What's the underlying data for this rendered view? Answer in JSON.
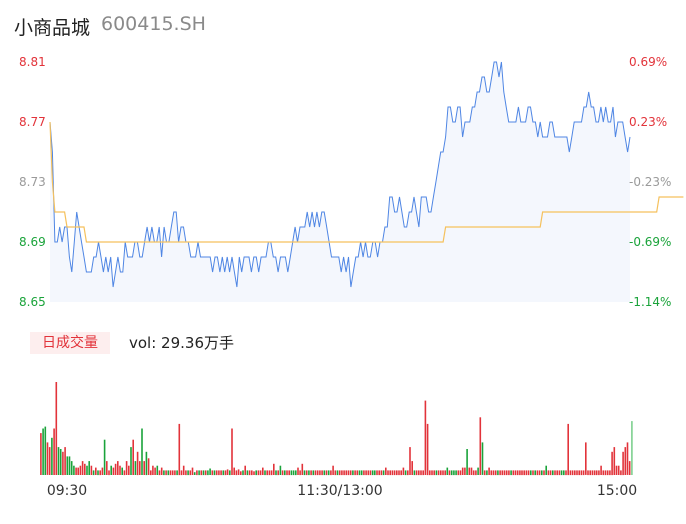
{
  "header": {
    "name": "小商品城",
    "code": "600415.SH"
  },
  "volume_panel": {
    "tag": "日成交量",
    "text": "vol: 29.36万手"
  },
  "colors": {
    "price_line": "#4f86e4",
    "avg_line": "#f5c15d",
    "area_fill": "#f4f7fd",
    "up": "#e2333a",
    "down": "#1aa33a",
    "neutral": "#9a9a9a"
  },
  "chart_data": [
    {
      "type": "line",
      "ylim": [
        8.65,
        8.81
      ],
      "y_ticks": [
        {
          "label": "8.81",
          "tone": "up"
        },
        {
          "label": "8.77",
          "tone": "up"
        },
        {
          "label": "8.73",
          "tone": "neutral"
        },
        {
          "label": "8.69",
          "tone": "down"
        },
        {
          "label": "8.65",
          "tone": "down"
        }
      ],
      "y2_ticks": [
        {
          "label": "0.69%",
          "tone": "up"
        },
        {
          "label": "0.23%",
          "tone": "up"
        },
        {
          "label": "-0.23%",
          "tone": "neutral"
        },
        {
          "label": "-0.69%",
          "tone": "down"
        },
        {
          "label": "-1.14%",
          "tone": "down"
        }
      ],
      "grid": false,
      "series": [
        {
          "role": "price",
          "values": [
            8.77,
            8.75,
            8.69,
            8.69,
            8.7,
            8.69,
            8.7,
            8.7,
            8.68,
            8.67,
            8.69,
            8.71,
            8.7,
            8.69,
            8.68,
            8.67,
            8.67,
            8.67,
            8.68,
            8.68,
            8.69,
            8.68,
            8.67,
            8.68,
            8.67,
            8.68,
            8.66,
            8.67,
            8.68,
            8.67,
            8.67,
            8.69,
            8.68,
            8.68,
            8.68,
            8.69,
            8.69,
            8.68,
            8.68,
            8.69,
            8.7,
            8.69,
            8.7,
            8.69,
            8.69,
            8.7,
            8.68,
            8.7,
            8.69,
            8.69,
            8.7,
            8.71,
            8.71,
            8.69,
            8.7,
            8.7,
            8.69,
            8.69,
            8.68,
            8.68,
            8.68,
            8.69,
            8.68,
            8.68,
            8.68,
            8.68,
            8.68,
            8.67,
            8.68,
            8.68,
            8.67,
            8.68,
            8.67,
            8.68,
            8.67,
            8.68,
            8.67,
            8.66,
            8.68,
            8.67,
            8.68,
            8.68,
            8.68,
            8.67,
            8.68,
            8.68,
            8.67,
            8.68,
            8.68,
            8.68,
            8.69,
            8.69,
            8.68,
            8.68,
            8.67,
            8.68,
            8.68,
            8.68,
            8.67,
            8.68,
            8.69,
            8.7,
            8.69,
            8.7,
            8.7,
            8.7,
            8.71,
            8.7,
            8.71,
            8.7,
            8.71,
            8.7,
            8.71,
            8.71,
            8.7,
            8.69,
            8.68,
            8.68,
            8.68,
            8.68,
            8.67,
            8.68,
            8.67,
            8.68,
            8.66,
            8.67,
            8.68,
            8.68,
            8.69,
            8.68,
            8.69,
            8.68,
            8.68,
            8.69,
            8.69,
            8.68,
            8.69,
            8.69,
            8.7,
            8.7,
            8.72,
            8.72,
            8.71,
            8.71,
            8.72,
            8.71,
            8.7,
            8.7,
            8.71,
            8.71,
            8.72,
            8.71,
            8.7,
            8.72,
            8.72,
            8.72,
            8.71,
            8.71,
            8.72,
            8.73,
            8.74,
            8.75,
            8.75,
            8.76,
            8.78,
            8.78,
            8.77,
            8.77,
            8.78,
            8.78,
            8.76,
            8.77,
            8.77,
            8.77,
            8.78,
            8.78,
            8.79,
            8.79,
            8.8,
            8.8,
            8.79,
            8.79,
            8.8,
            8.81,
            8.81,
            8.8,
            8.81,
            8.79,
            8.78,
            8.77,
            8.77,
            8.77,
            8.77,
            8.78,
            8.77,
            8.77,
            8.77,
            8.78,
            8.78,
            8.77,
            8.77,
            8.76,
            8.77,
            8.76,
            8.76,
            8.76,
            8.77,
            8.77,
            8.76,
            8.76,
            8.76,
            8.76,
            8.76,
            8.76,
            8.75,
            8.76,
            8.77,
            8.77,
            8.77,
            8.77,
            8.78,
            8.78,
            8.79,
            8.78,
            8.78,
            8.77,
            8.77,
            8.78,
            8.77,
            8.78,
            8.77,
            8.77,
            8.78,
            8.76,
            8.77,
            8.77,
            8.77,
            8.76,
            8.75,
            8.76
          ]
        },
        {
          "role": "average",
          "values": [
            8.77,
            8.73,
            8.71,
            8.71,
            8.71,
            8.71,
            8.71,
            8.7,
            8.7,
            8.7,
            8.7,
            8.7,
            8.7,
            8.7,
            8.7,
            8.69,
            8.69,
            8.69,
            8.69,
            8.69,
            8.69,
            8.69,
            8.69,
            8.69,
            8.69,
            8.69,
            8.69,
            8.69,
            8.69,
            8.69,
            8.69,
            8.69,
            8.69,
            8.69,
            8.69,
            8.69,
            8.69,
            8.69,
            8.69,
            8.69,
            8.69,
            8.69,
            8.69,
            8.69,
            8.69,
            8.69,
            8.69,
            8.69,
            8.69,
            8.69,
            8.69,
            8.69,
            8.69,
            8.69,
            8.69,
            8.69,
            8.69,
            8.69,
            8.69,
            8.69,
            8.69,
            8.69,
            8.69,
            8.69,
            8.69,
            8.69,
            8.69,
            8.69,
            8.69,
            8.69,
            8.69,
            8.69,
            8.69,
            8.69,
            8.69,
            8.69,
            8.69,
            8.69,
            8.69,
            8.69,
            8.69,
            8.69,
            8.69,
            8.69,
            8.69,
            8.69,
            8.69,
            8.69,
            8.69,
            8.69,
            8.69,
            8.69,
            8.69,
            8.69,
            8.69,
            8.69,
            8.69,
            8.69,
            8.69,
            8.69,
            8.69,
            8.69,
            8.69,
            8.69,
            8.69,
            8.69,
            8.69,
            8.69,
            8.69,
            8.69,
            8.69,
            8.69,
            8.69,
            8.69,
            8.69,
            8.69,
            8.69,
            8.69,
            8.69,
            8.69,
            8.69,
            8.69,
            8.69,
            8.69,
            8.69,
            8.69,
            8.69,
            8.69,
            8.69,
            8.69,
            8.69,
            8.69,
            8.69,
            8.69,
            8.69,
            8.69,
            8.69,
            8.69,
            8.69,
            8.69,
            8.69,
            8.69,
            8.69,
            8.69,
            8.69,
            8.69,
            8.69,
            8.69,
            8.69,
            8.69,
            8.69,
            8.69,
            8.69,
            8.69,
            8.69,
            8.69,
            8.69,
            8.69,
            8.69,
            8.69,
            8.69,
            8.69,
            8.69,
            8.7,
            8.7,
            8.7,
            8.7,
            8.7,
            8.7,
            8.7,
            8.7,
            8.7,
            8.7,
            8.7,
            8.7,
            8.7,
            8.7,
            8.7,
            8.7,
            8.7,
            8.7,
            8.7,
            8.7,
            8.7,
            8.7,
            8.7,
            8.7,
            8.7,
            8.7,
            8.7,
            8.7,
            8.7,
            8.7,
            8.7,
            8.7,
            8.7,
            8.7,
            8.7,
            8.7,
            8.7,
            8.7,
            8.7,
            8.7,
            8.71,
            8.71,
            8.71,
            8.71,
            8.71,
            8.71,
            8.71,
            8.71,
            8.71,
            8.71,
            8.71,
            8.71,
            8.71,
            8.71,
            8.71,
            8.71,
            8.71,
            8.71,
            8.71,
            8.71,
            8.71,
            8.71,
            8.71,
            8.71,
            8.71,
            8.71,
            8.71,
            8.71,
            8.71,
            8.71,
            8.71,
            8.71,
            8.71,
            8.71,
            8.71,
            8.71,
            8.71,
            8.71,
            8.71,
            8.71,
            8.71,
            8.71,
            8.71,
            8.71,
            8.71,
            8.71,
            8.71,
            8.71,
            8.72,
            8.72,
            8.72,
            8.72,
            8.72,
            8.72,
            8.72,
            8.72,
            8.72,
            8.72,
            8.72
          ]
        }
      ]
    },
    {
      "type": "bar",
      "x_ticks": [
        "09:30",
        "11:30/13:00",
        "15:00"
      ],
      "series": [
        {
          "role": "volume",
          "values": [
            0.45,
            0.5,
            0.52,
            0.35,
            0.3,
            0.4,
            0.5,
            1.0,
            0.3,
            0.28,
            0.25,
            0.3,
            0.2,
            0.2,
            0.15,
            0.1,
            0.08,
            0.08,
            0.1,
            0.15,
            0.12,
            0.1,
            0.15,
            0.1,
            0.05,
            0.08,
            0.05,
            0.05,
            0.08,
            0.38,
            0.15,
            0.05,
            0.1,
            0.08,
            0.12,
            0.15,
            0.1,
            0.08,
            0.05,
            0.15,
            0.1,
            0.3,
            0.38,
            0.15,
            0.25,
            0.15,
            0.5,
            0.15,
            0.25,
            0.18,
            0.05,
            0.1,
            0.08,
            0.1,
            0.05,
            0.08,
            0.05,
            0.05,
            0.05,
            0.05,
            0.05,
            0.05,
            0.05,
            0.55,
            0.05,
            0.1,
            0.05,
            0.05,
            0.05,
            0.08,
            0.03,
            0.05,
            0.05,
            0.05,
            0.05,
            0.05,
            0.05,
            0.07,
            0.05,
            0.05,
            0.05,
            0.05,
            0.05,
            0.05,
            0.05,
            0.06,
            0.05,
            0.5,
            0.08,
            0.05,
            0.06,
            0.04,
            0.05,
            0.1,
            0.05,
            0.05,
            0.05,
            0.04,
            0.05,
            0.05,
            0.05,
            0.08,
            0.05,
            0.05,
            0.05,
            0.05,
            0.12,
            0.05,
            0.05,
            0.1,
            0.05,
            0.05,
            0.05,
            0.05,
            0.05,
            0.05,
            0.05,
            0.08,
            0.05,
            0.12,
            0.05,
            0.05,
            0.05,
            0.05,
            0.05,
            0.05,
            0.05,
            0.05,
            0.05,
            0.05,
            0.05,
            0.05,
            0.05,
            0.1,
            0.05,
            0.05,
            0.05,
            0.05,
            0.05,
            0.05,
            0.05,
            0.05,
            0.05,
            0.05,
            0.05,
            0.05,
            0.05,
            0.05,
            0.05,
            0.05,
            0.05,
            0.05,
            0.05,
            0.05,
            0.05,
            0.05,
            0.05,
            0.08,
            0.05,
            0.05,
            0.05,
            0.05,
            0.05,
            0.05,
            0.05,
            0.08,
            0.05,
            0.05,
            0.3,
            0.15,
            0.05,
            0.05,
            0.05,
            0.05,
            0.05,
            0.8,
            0.55,
            0.05,
            0.05,
            0.05,
            0.05,
            0.05,
            0.05,
            0.05,
            0.05,
            0.08,
            0.05,
            0.05,
            0.05,
            0.05,
            0.05,
            0.05,
            0.08,
            0.08,
            0.28,
            0.08,
            0.08,
            0.05,
            0.05,
            0.08,
            0.62,
            0.35,
            0.05,
            0.05,
            0.08,
            0.05,
            0.05,
            0.05,
            0.05,
            0.05,
            0.05,
            0.05,
            0.05,
            0.05,
            0.05,
            0.05,
            0.05,
            0.05,
            0.05,
            0.05,
            0.05,
            0.05,
            0.05,
            0.05,
            0.05,
            0.05,
            0.05,
            0.05,
            0.05,
            0.05,
            0.1,
            0.05,
            0.05,
            0.05,
            0.05,
            0.05,
            0.05,
            0.05,
            0.05,
            0.05,
            0.55,
            0.05,
            0.05,
            0.05,
            0.05,
            0.05,
            0.05,
            0.05,
            0.35,
            0.05,
            0.05,
            0.05,
            0.05,
            0.05,
            0.05,
            0.1,
            0.05,
            0.05,
            0.05,
            0.05,
            0.25,
            0.3,
            0.1,
            0.1,
            0.05,
            0.25,
            0.3,
            0.35,
            0.15,
            0.58
          ]
        }
      ]
    }
  ]
}
